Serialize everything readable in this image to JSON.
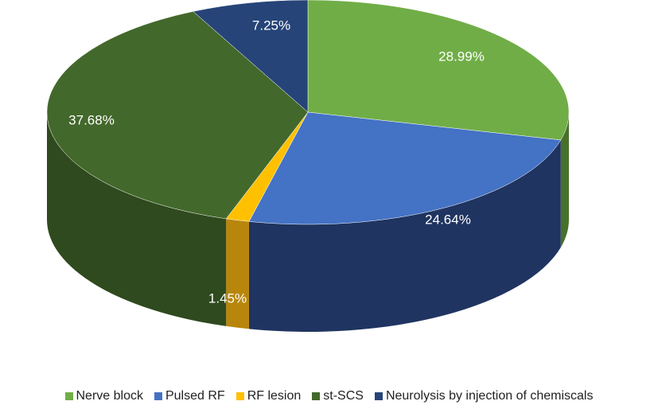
{
  "chart_data": {
    "type": "pie",
    "title": "",
    "slices": [
      {
        "name": "Nerve block",
        "value": 28.99,
        "label": "28.99%",
        "color": "#70AD47",
        "side_color": "#48702D"
      },
      {
        "name": "Pulsed RF",
        "value": 24.64,
        "label": "24.64%",
        "color": "#4472C4",
        "side_color": "#1F3460"
      },
      {
        "name": "RF lesion",
        "value": 1.45,
        "label": "1.45%",
        "color": "#FFC000",
        "side_color": "#B8860B"
      },
      {
        "name": "st-SCS",
        "value": 37.68,
        "label": "37.68%",
        "color": "#43682B",
        "side_color": "#2F4A1E"
      },
      {
        "name": "Neurolysis by injection of chemiscals",
        "value": 7.25,
        "label": "7.25%",
        "color": "#264478",
        "side_color": "#16284A"
      }
    ],
    "legend_position": "bottom",
    "style": "3d-pie"
  }
}
